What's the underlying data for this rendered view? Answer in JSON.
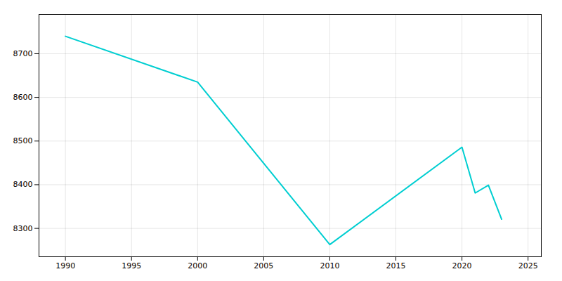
{
  "chart_data": {
    "type": "line",
    "x": [
      1990,
      2000,
      2010,
      2020,
      2021,
      2022,
      2023
    ],
    "values": [
      8740,
      8635,
      8263,
      8486,
      8381,
      8399,
      8321
    ],
    "color": "#00CED1",
    "xlim": [
      1988,
      2026
    ],
    "ylim": [
      8235,
      8790
    ],
    "xticks": [
      1990,
      1995,
      2000,
      2005,
      2010,
      2015,
      2020,
      2025
    ],
    "yticks": [
      8300,
      8400,
      8500,
      8600,
      8700
    ],
    "grid": true
  }
}
